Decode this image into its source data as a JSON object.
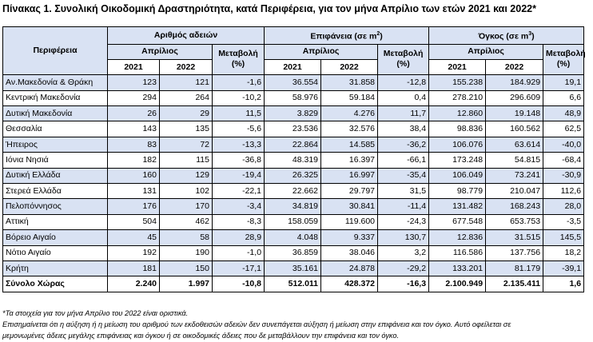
{
  "title": "Πίνακας 1. Συνολική Οικοδομική Δραστηριότητα, κατά  Περιφέρεια, για τον μήνα Απρίλιο των ετών 2021 και 2022*",
  "headers": {
    "region": "Περιφέρεια",
    "permits_group": "Αριθμός αδειών",
    "area_group_prefix": "Επιφάνεια (σε m",
    "area_group_sup": "2",
    "area_group_suffix": ")",
    "volume_group_prefix": "Όγκος (σε m",
    "volume_group_sup": "3",
    "volume_group_suffix": ")",
    "month": "Απρίλιος",
    "change_line1": "Μεταβολή",
    "change_line2": "(%)",
    "year1": "2021",
    "year2": "2022"
  },
  "rows": [
    {
      "region": "Αν.Μακεδονία & Θράκη",
      "p21": "123",
      "p22": "121",
      "pch": "-1,6",
      "a21": "36.554",
      "a22": "31.858",
      "ach": "-12,8",
      "v21": "155.238",
      "v22": "184.929",
      "vch": "19,1"
    },
    {
      "region": "Κεντρική Μακεδονία",
      "p21": "294",
      "p22": "264",
      "pch": "-10,2",
      "a21": "58.976",
      "a22": "59.184",
      "ach": "0,4",
      "v21": "278.210",
      "v22": "296.609",
      "vch": "6,6"
    },
    {
      "region": "Δυτική Μακεδονία",
      "p21": "26",
      "p22": "29",
      "pch": "11,5",
      "a21": "3.829",
      "a22": "4.276",
      "ach": "11,7",
      "v21": "12.860",
      "v22": "19.148",
      "vch": "48,9"
    },
    {
      "region": "Θεσσαλία",
      "p21": "143",
      "p22": "135",
      "pch": "-5,6",
      "a21": "23.536",
      "a22": "32.576",
      "ach": "38,4",
      "v21": "98.836",
      "v22": "160.562",
      "vch": "62,5"
    },
    {
      "region": "Ήπειρος",
      "p21": "83",
      "p22": "72",
      "pch": "-13,3",
      "a21": "22.864",
      "a22": "14.585",
      "ach": "-36,2",
      "v21": "106.076",
      "v22": "63.614",
      "vch": "-40,0"
    },
    {
      "region": "Ιόνια Νησιά",
      "p21": "182",
      "p22": "115",
      "pch": "-36,8",
      "a21": "48.319",
      "a22": "16.397",
      "ach": "-66,1",
      "v21": "173.248",
      "v22": "54.815",
      "vch": "-68,4"
    },
    {
      "region": "Δυτική Ελλάδα",
      "p21": "160",
      "p22": "129",
      "pch": "-19,4",
      "a21": "26.325",
      "a22": "16.997",
      "ach": "-35,4",
      "v21": "106.049",
      "v22": "73.241",
      "vch": "-30,9"
    },
    {
      "region": "Στερεά Ελλάδα",
      "p21": "131",
      "p22": "102",
      "pch": "-22,1",
      "a21": "22.662",
      "a22": "29.797",
      "ach": "31,5",
      "v21": "98.779",
      "v22": "210.047",
      "vch": "112,6"
    },
    {
      "region": "Πελοπόννησος",
      "p21": "176",
      "p22": "170",
      "pch": "-3,4",
      "a21": "34.819",
      "a22": "30.841",
      "ach": "-11,4",
      "v21": "131.482",
      "v22": "168.243",
      "vch": "28,0"
    },
    {
      "region": "Αττική",
      "p21": "504",
      "p22": "462",
      "pch": "-8,3",
      "a21": "158.059",
      "a22": "119.600",
      "ach": "-24,3",
      "v21": "677.548",
      "v22": "653.753",
      "vch": "-3,5"
    },
    {
      "region": "Βόρειο Αιγαίο",
      "p21": "45",
      "p22": "58",
      "pch": "28,9",
      "a21": "4.048",
      "a22": "9.337",
      "ach": "130,7",
      "v21": "12.836",
      "v22": "31.515",
      "vch": "145,5"
    },
    {
      "region": "Νότιο Αιγαίο",
      "p21": "192",
      "p22": "190",
      "pch": "-1,0",
      "a21": "36.859",
      "a22": "38.046",
      "ach": "3,2",
      "v21": "116.586",
      "v22": "137.756",
      "vch": "18,2"
    },
    {
      "region": "Κρήτη",
      "p21": "181",
      "p22": "150",
      "pch": "-17,1",
      "a21": "35.161",
      "a22": "24.878",
      "ach": "-29,2",
      "v21": "133.201",
      "v22": "81.179",
      "vch": "-39,1"
    }
  ],
  "total": {
    "region": "Σύνολο Χώρας",
    "p21": "2.240",
    "p22": "1.997",
    "pch": "-10,8",
    "a21": "512.011",
    "a22": "428.372",
    "ach": "-16,3",
    "v21": "2.100.949",
    "v22": "2.135.411",
    "vch": "1,6"
  },
  "notes": {
    "line1": "*Τα στοιχεία για τον μήνα Απρίλιο του 2022 είναι οριστικά.",
    "line2": "Επισημαίνεται ότι η αύξηση ή η μείωση του αριθμού των εκδοθεισών αδειών δεν συνεπάγεται αύξηση ή μείωση στην επιφάνεια και τον όγκο. Αυτό οφείλεται σε",
    "line3": "μεμονωμένες άδειες μεγάλης επιφάνειας και όγκου ή σε οικοδομικές άδειες που δε μεταβάλλουν την επιφάνεια και τον όγκο."
  }
}
